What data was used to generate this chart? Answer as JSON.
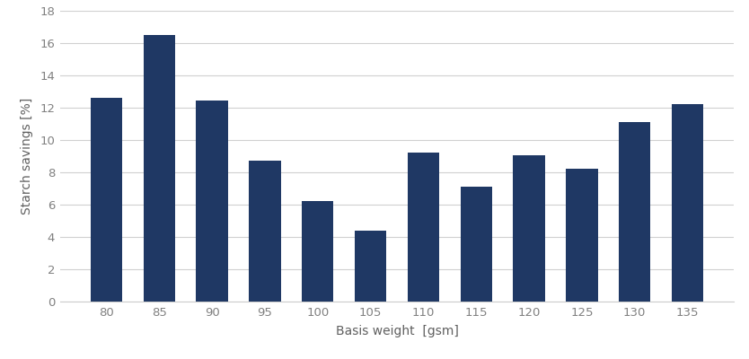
{
  "categories": [
    "80",
    "85",
    "90",
    "95",
    "100",
    "105",
    "110",
    "115",
    "120",
    "125",
    "130",
    "135"
  ],
  "values": [
    12.6,
    16.5,
    12.45,
    8.75,
    6.2,
    4.4,
    9.25,
    7.1,
    9.05,
    8.2,
    11.1,
    12.2
  ],
  "bar_color": "#1F3864",
  "xlabel": "Basis weight  [gsm]",
  "ylabel": "Starch savings [%]",
  "ylim": [
    0,
    18
  ],
  "yticks": [
    0,
    2,
    4,
    6,
    8,
    10,
    12,
    14,
    16,
    18
  ],
  "background_color": "#ffffff",
  "grid_color": "#d0d0d0",
  "tick_label_color": "#808080",
  "axis_label_color": "#606060",
  "xlabel_fontsize": 10,
  "ylabel_fontsize": 10,
  "tick_fontsize": 9.5,
  "bar_width": 0.6
}
